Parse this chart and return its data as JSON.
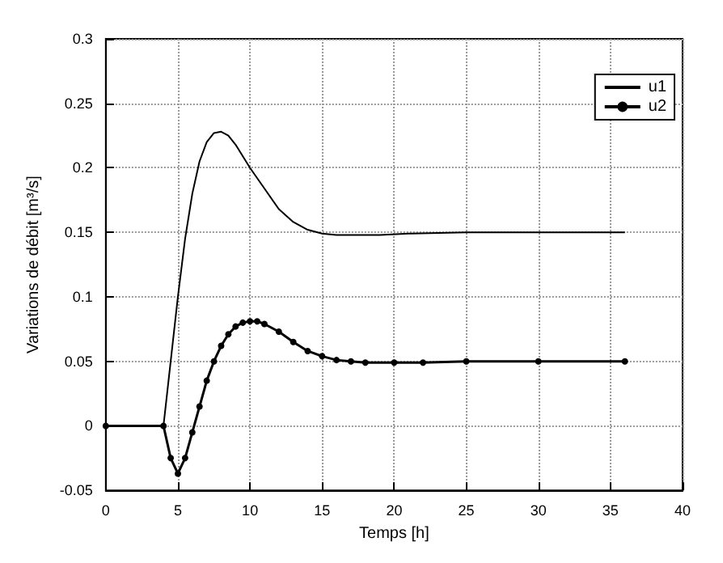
{
  "chart_data": {
    "type": "line",
    "xlabel": "Temps [h]",
    "ylabel": "Variations de débit [m³/s]",
    "xlim": [
      0,
      40
    ],
    "xticks": [
      0,
      5,
      10,
      15,
      20,
      25,
      30,
      35,
      40
    ],
    "ylim": [
      -0.05,
      0.3
    ],
    "yticks": [
      -0.05,
      0,
      0.05,
      0.1,
      0.15,
      0.2,
      0.25,
      0.3
    ],
    "grid": true,
    "legend": "top right",
    "line_style": "solid",
    "series": [
      {
        "name": "u1",
        "color": "#000000",
        "marker": "none",
        "x": [
          0,
          4,
          4.5,
          5,
          5.5,
          6,
          6.5,
          7,
          7.5,
          8,
          8.5,
          9,
          10,
          11,
          12,
          13,
          14,
          15,
          16,
          17,
          19,
          21,
          25,
          30,
          36
        ],
        "values": [
          0,
          0,
          0.05,
          0.1,
          0.145,
          0.18,
          0.205,
          0.22,
          0.227,
          0.228,
          0.225,
          0.218,
          0.2,
          0.184,
          0.168,
          0.158,
          0.152,
          0.149,
          0.148,
          0.148,
          0.148,
          0.149,
          0.15,
          0.15,
          0.15
        ]
      },
      {
        "name": "u2",
        "color": "#000000",
        "marker": "circle",
        "x": [
          0,
          4,
          4.5,
          5,
          5.5,
          6,
          6.5,
          7,
          7.5,
          8,
          8.5,
          9,
          9.5,
          10,
          10.5,
          11,
          12,
          13,
          14,
          15,
          16,
          17,
          18,
          20,
          22,
          25,
          30,
          36
        ],
        "values": [
          0,
          0,
          -0.025,
          -0.037,
          -0.025,
          -0.005,
          0.015,
          0.035,
          0.05,
          0.062,
          0.071,
          0.077,
          0.08,
          0.081,
          0.081,
          0.079,
          0.073,
          0.065,
          0.058,
          0.054,
          0.051,
          0.05,
          0.049,
          0.049,
          0.049,
          0.05,
          0.05,
          0.05
        ]
      }
    ]
  }
}
